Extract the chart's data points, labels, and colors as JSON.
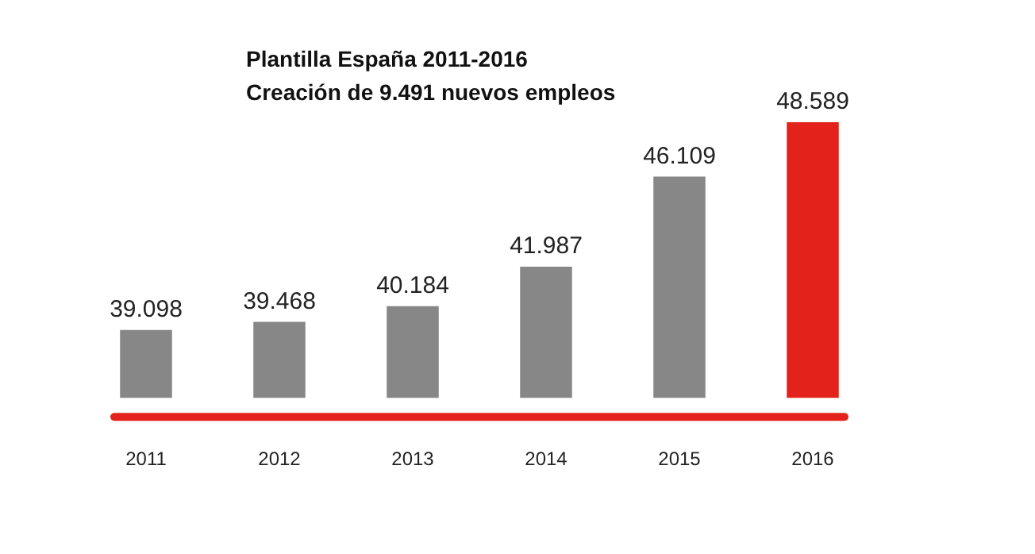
{
  "chart_data": {
    "type": "bar",
    "title": "Plantilla España 2011-2016",
    "subtitle": "Creación de 9.491 nuevos empleos",
    "categories": [
      "2011",
      "2012",
      "2013",
      "2014",
      "2015",
      "2016"
    ],
    "values": [
      39098,
      39468,
      40184,
      41987,
      46109,
      48589
    ],
    "colors": [
      "#878787",
      "#878787",
      "#878787",
      "#878787",
      "#878787",
      "#e3231b"
    ],
    "value_labels": [
      "39.098",
      "39.468",
      "40.184",
      "41.987",
      "46.109",
      "48.589"
    ],
    "tick_labels": "x",
    "grid": false,
    "legend": false
  }
}
